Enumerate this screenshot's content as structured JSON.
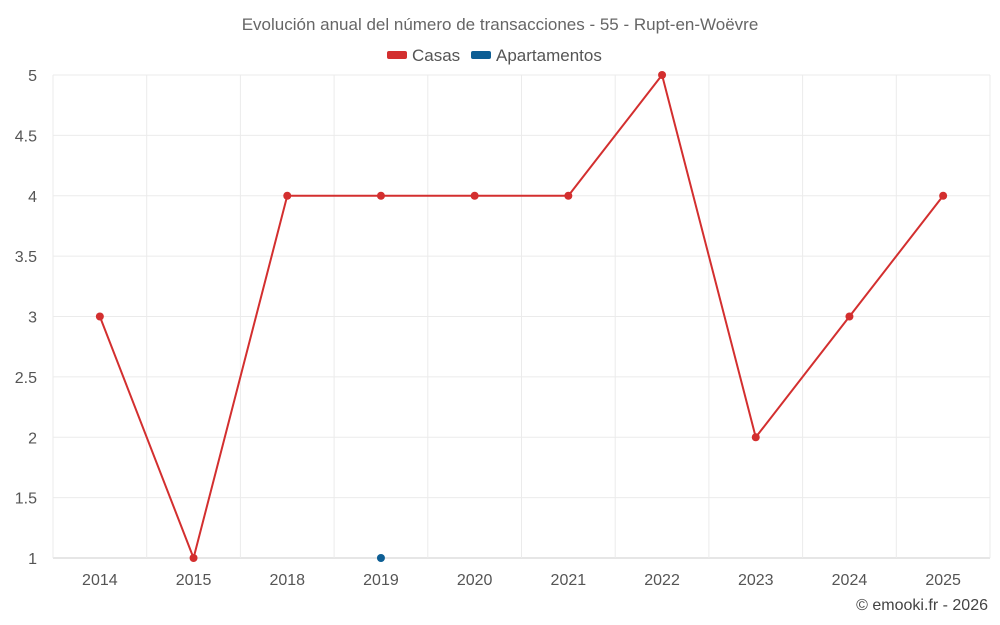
{
  "chart_data": {
    "type": "line",
    "title": "Evolución anual del número de transacciones - 55 - Rupt-en-Woëvre",
    "categories": [
      "2014",
      "2015",
      "2018",
      "2019",
      "2020",
      "2021",
      "2022",
      "2023",
      "2024",
      "2025"
    ],
    "series": [
      {
        "name": "Casas",
        "color": "#d32f2f",
        "values": [
          3,
          1,
          4,
          4,
          4,
          4,
          5,
          2,
          3,
          4
        ]
      },
      {
        "name": "Apartamentos",
        "color": "#0d5e94",
        "values": [
          null,
          null,
          null,
          1,
          null,
          null,
          null,
          null,
          null,
          null
        ]
      }
    ],
    "yticks": [
      "1",
      "1.5",
      "2",
      "2.5",
      "3",
      "3.5",
      "4",
      "4.5",
      "5"
    ],
    "ylim": [
      1,
      5
    ],
    "grid": true,
    "legend_position": "top-center",
    "xlabel": "",
    "ylabel": ""
  },
  "credit": "© emooki.fr - 2026"
}
